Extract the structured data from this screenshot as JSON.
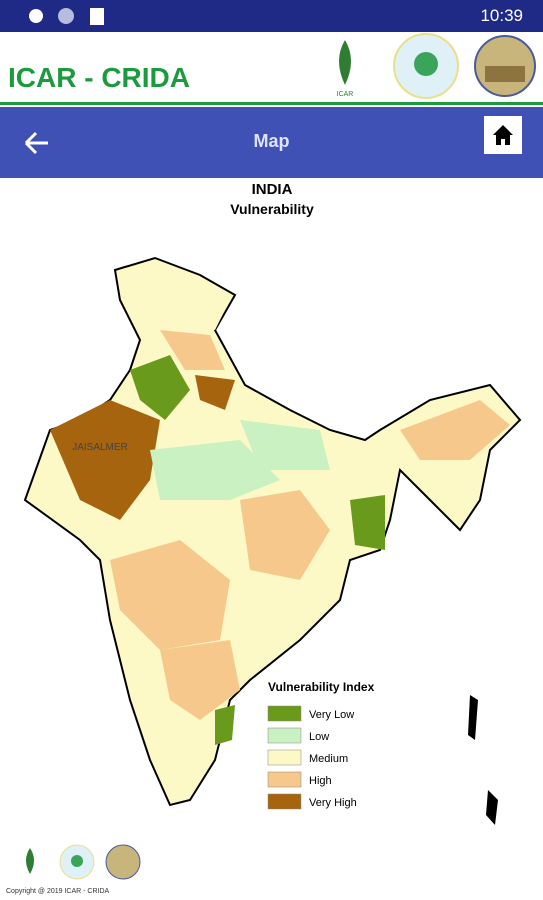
{
  "status_bar": {
    "time": "10:39"
  },
  "header": {
    "title": "ICAR - CRIDA",
    "logo_label": "ICAR"
  },
  "nav": {
    "title": "Map"
  },
  "map": {
    "title": "INDIA",
    "subtitle": "Vulnerability",
    "place_label": "JAISALMER",
    "legend": {
      "title": "Vulnerability Index",
      "items": [
        {
          "label": "Very Low",
          "color": "#6a9a1c"
        },
        {
          "label": "Low",
          "color": "#c9f1c2"
        },
        {
          "label": "Medium",
          "color": "#fdf9c6"
        },
        {
          "label": "High",
          "color": "#f7c88b"
        },
        {
          "label": "Very High",
          "color": "#a6640f"
        }
      ]
    }
  },
  "footer": {
    "copyright": "Copyright @ 2019 ICAR - CRIDA"
  }
}
